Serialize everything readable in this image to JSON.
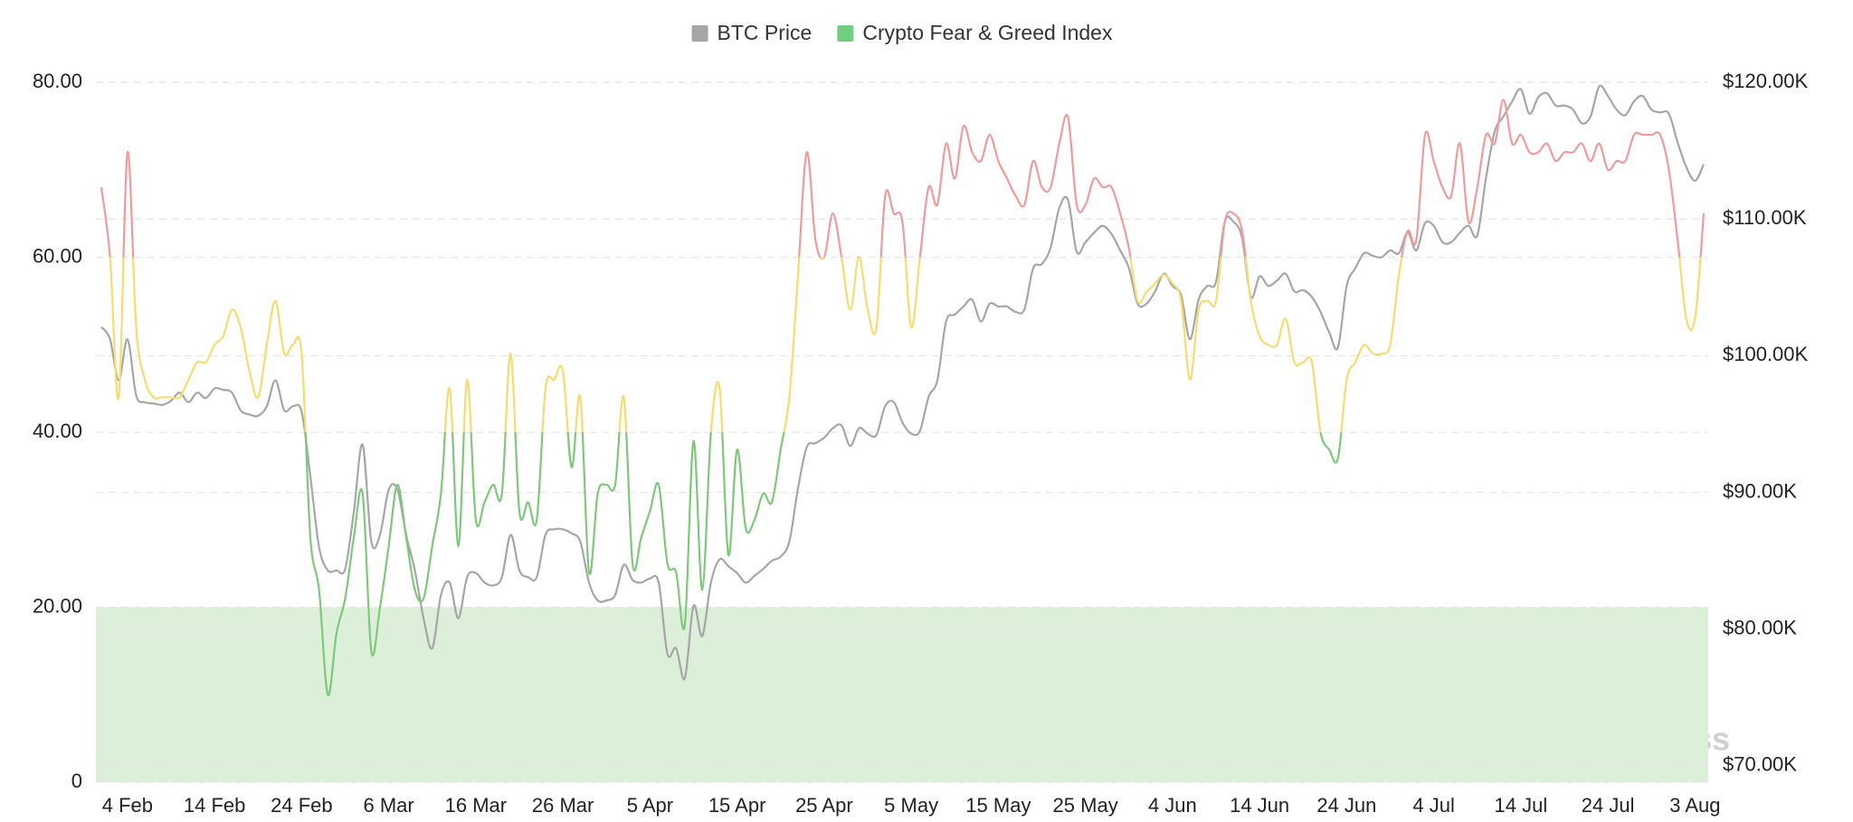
{
  "chart_data": {
    "type": "line",
    "series": [
      {
        "name": "BTC Price",
        "color": "#a6a6a6",
        "axis": "y2",
        "values": [
          102100,
          101200,
          98200,
          101200,
          97100,
          96600,
          96500,
          96400,
          96700,
          97300,
          96600,
          97300,
          96900,
          97600,
          97500,
          97300,
          96000,
          95700,
          95600,
          96300,
          98200,
          96000,
          96300,
          95900,
          91200,
          86000,
          84300,
          84300,
          84400,
          88600,
          93500,
          86400,
          86900,
          90200,
          90200,
          86900,
          84300,
          80800,
          78600,
          82500,
          83400,
          80800,
          83800,
          84100,
          83400,
          83200,
          83800,
          86900,
          84300,
          83800,
          83800,
          86900,
          87300,
          87300,
          87000,
          86400,
          83400,
          82100,
          82100,
          82500,
          84700,
          83600,
          83400,
          83700,
          83400,
          78200,
          78600,
          76400,
          81700,
          79500,
          83400,
          85100,
          84600,
          84100,
          83400,
          83900,
          84400,
          85000,
          85300,
          86400,
          90300,
          93300,
          93600,
          94000,
          94700,
          94900,
          93400,
          94700,
          94300,
          94200,
          96300,
          96600,
          95100,
          94300,
          94500,
          97000,
          98200,
          102500,
          103000,
          103600,
          104100,
          102500,
          103800,
          103600,
          103600,
          103200,
          103400,
          106400,
          106700,
          107900,
          110800,
          111400,
          107600,
          108300,
          109000,
          109500,
          108900,
          107700,
          106400,
          103800,
          103800,
          104700,
          106000,
          105100,
          104400,
          101200,
          104100,
          105100,
          105400,
          109800,
          109800,
          108600,
          104300,
          105800,
          105100,
          105500,
          106000,
          104700,
          104800,
          104300,
          103200,
          101700,
          100600,
          105100,
          106400,
          107500,
          107300,
          107200,
          107700,
          107500,
          109000,
          107700,
          109700,
          109500,
          108300,
          108300,
          109000,
          109500,
          108800,
          113000,
          116400,
          117500,
          118600,
          119500,
          117700,
          118900,
          119200,
          118300,
          118300,
          118000,
          117000,
          117500,
          119700,
          119000,
          118000,
          117600,
          118600,
          119000,
          118000,
          117800,
          117700,
          115600,
          113800,
          112800,
          114000
        ]
      },
      {
        "name": "Crypto Fear & Greed Index",
        "color": "#6fcf7f",
        "color_zones": [
          {
            "max": 40,
            "color": "#7fc77a"
          },
          {
            "max": 60,
            "color": "#f6dc70"
          },
          {
            "color": "#f29a9a"
          }
        ],
        "values": [
          68,
          60,
          44,
          72,
          52,
          46,
          44,
          44,
          44,
          44,
          46,
          48,
          48,
          50,
          51,
          54,
          52,
          47,
          44,
          50,
          55,
          49,
          50,
          49,
          28,
          22,
          10,
          17,
          21,
          28,
          33,
          15,
          20,
          27,
          34,
          28,
          22,
          21,
          27,
          33,
          45,
          27,
          46,
          30,
          32,
          34,
          33,
          49,
          31,
          32,
          30,
          45,
          46,
          47,
          36,
          44,
          24,
          33,
          34,
          34,
          44,
          25,
          28,
          31,
          34,
          25,
          24,
          18,
          39,
          22,
          40,
          45,
          26,
          38,
          29,
          30,
          33,
          32,
          38,
          44,
          58,
          72,
          62,
          60,
          65,
          60,
          54,
          60,
          54,
          52,
          67,
          65,
          64,
          52,
          60,
          68,
          66,
          73,
          69,
          75,
          72,
          71,
          74,
          71,
          69,
          67,
          66,
          71,
          68,
          68,
          73,
          76,
          66,
          66,
          69,
          68,
          68,
          65,
          61,
          55,
          56,
          57,
          58,
          57,
          55,
          46,
          54,
          55,
          55,
          64,
          65,
          63,
          55,
          51,
          50,
          50,
          53,
          48,
          48,
          48,
          40,
          38,
          37,
          46,
          48,
          50,
          49,
          49,
          50,
          58,
          63,
          62,
          74,
          71,
          68,
          67,
          73,
          64,
          68,
          74,
          73,
          78,
          73,
          74,
          72,
          72,
          73,
          71,
          72,
          72,
          73,
          71,
          73,
          70,
          71,
          71,
          74,
          74,
          74,
          74,
          70,
          62,
          53,
          53,
          65
        ]
      }
    ],
    "categories": [
      null,
      null,
      null,
      "4 Feb",
      null,
      null,
      null,
      null,
      null,
      null,
      null,
      null,
      null,
      "14 Feb",
      null,
      null,
      null,
      null,
      null,
      null,
      null,
      null,
      null,
      "24 Feb",
      null,
      null,
      null,
      null,
      null,
      null,
      null,
      null,
      null,
      "6 Mar",
      null,
      null,
      null,
      null,
      null,
      null,
      null,
      null,
      null,
      "16 Mar",
      null,
      null,
      null,
      null,
      null,
      null,
      null,
      null,
      null,
      "26 Mar",
      null,
      null,
      null,
      null,
      null,
      null,
      null,
      null,
      null,
      "5 Apr",
      null,
      null,
      null,
      null,
      null,
      null,
      null,
      null,
      null,
      "15 Apr",
      null,
      null,
      null,
      null,
      null,
      null,
      null,
      null,
      null,
      "25 Apr",
      null,
      null,
      null,
      null,
      null,
      null,
      null,
      null,
      null,
      "5 May",
      null,
      null,
      null,
      null,
      null,
      null,
      null,
      null,
      null,
      "15 May",
      null,
      null,
      null,
      null,
      null,
      null,
      null,
      null,
      null,
      "25 May",
      null,
      null,
      null,
      null,
      null,
      null,
      null,
      null,
      null,
      "4 Jun",
      null,
      null,
      null,
      null,
      null,
      null,
      null,
      null,
      null,
      "14 Jun",
      null,
      null,
      null,
      null,
      null,
      null,
      null,
      null,
      null,
      "24 Jun",
      null,
      null,
      null,
      null,
      null,
      null,
      null,
      null,
      null,
      "4 Jul",
      null,
      null,
      null,
      null,
      null,
      null,
      null,
      null,
      null,
      "14 Jul",
      null,
      null,
      null,
      null,
      null,
      null,
      null,
      null,
      null,
      "24 Jul",
      null,
      null,
      null,
      null,
      null,
      null,
      null,
      null,
      null,
      "3 Aug",
      null
    ],
    "ylim": [
      0,
      80
    ],
    "yticks": [
      0,
      {
        "value": 20,
        "label": "20.00"
      },
      {
        "value": 40,
        "label": "40.00"
      },
      {
        "value": 60,
        "label": "60.00"
      },
      {
        "value": 80,
        "label": "80.00"
      }
    ],
    "y2lim": [
      68800,
      120000
    ],
    "y2ticks": [
      {
        "value": 70000,
        "label": "$70.00K"
      },
      {
        "value": 80000,
        "label": "$80.00K"
      },
      {
        "value": 90000,
        "label": "$90.00K"
      },
      {
        "value": 100000,
        "label": "$100.00K"
      },
      {
        "value": 110000,
        "label": "$110.00K"
      },
      {
        "value": 120000,
        "label": "$120.00K"
      }
    ],
    "shaded_range": [
      0,
      20
    ],
    "shaded_color": "#dcefd9",
    "grid": true,
    "legend": "top",
    "watermark": "coinglass"
  }
}
